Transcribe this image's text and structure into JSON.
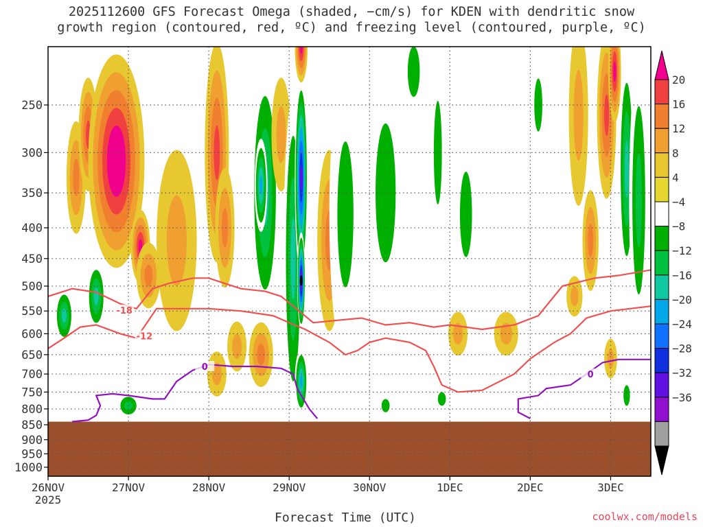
{
  "title_line1": "2025112600 GFS Forecast Omega (shaded, −cm/s) for KDEN with dendritic snow",
  "title_line2": "growth region (contoured, red, ºC) and freezing level (contoured, purple, ºC)",
  "credit": "coolwx.com/models",
  "chart_data": {
    "type": "heatmap",
    "xlabel": "Forecast Time (UTC)",
    "x_ticks": [
      "26NOV",
      "27NOV",
      "28NOV",
      "29NOV",
      "30NOV",
      "1DEC",
      "2DEC",
      "3DEC"
    ],
    "x_sub_label": "2025",
    "x_range_days": [
      0,
      7.5
    ],
    "y_ticks": [
      250,
      300,
      350,
      400,
      450,
      500,
      550,
      600,
      650,
      700,
      750,
      800,
      850,
      900,
      950,
      1000
    ],
    "ylim_hPa": [
      200,
      1035
    ],
    "y_scale": "log",
    "grid": true,
    "surface_pressure_hPa": 840,
    "surface_color": "#9c4f2b",
    "colorbar": {
      "ticks": [
        20,
        16,
        12,
        8,
        4,
        -4,
        -8,
        -12,
        -16,
        -20,
        -24,
        -28,
        -32,
        -36
      ],
      "colors": [
        "#f0008c",
        "#f04040",
        "#f08030",
        "#f0a030",
        "#e8c830",
        "#e6d830",
        "#ffffff",
        "#00b000",
        "#00c040",
        "#10c8a0",
        "#00a8e8",
        "#1070ff",
        "#1030e0",
        "#6010e0",
        "#9010d0",
        "#a0a0a0",
        "#000000"
      ]
    },
    "shading_blobs": [
      {
        "t": 0.35,
        "p": 330,
        "dt": 0.12,
        "dp": 70,
        "v": 10
      },
      {
        "t": 0.5,
        "p": 280,
        "dt": 0.12,
        "dp": 60,
        "v": 16
      },
      {
        "t": 0.85,
        "p": 310,
        "dt": 0.35,
        "dp": 120,
        "v": 22
      },
      {
        "t": 1.15,
        "p": 430,
        "dt": 0.12,
        "dp": 60,
        "v": 18
      },
      {
        "t": 1.25,
        "p": 480,
        "dt": 0.15,
        "dp": 60,
        "v": 10
      },
      {
        "t": 0.6,
        "p": 520,
        "dt": 0.12,
        "dp": 70,
        "v": -14
      },
      {
        "t": 0.2,
        "p": 560,
        "dt": 0.12,
        "dp": 60,
        "v": -14
      },
      {
        "t": 1.0,
        "p": 790,
        "dt": 0.15,
        "dp": 40,
        "v": -12
      },
      {
        "t": 1.6,
        "p": 420,
        "dt": 0.25,
        "dp": 140,
        "v": 6
      },
      {
        "t": 2.1,
        "p": 300,
        "dt": 0.15,
        "dp": 140,
        "v": 16
      },
      {
        "t": 2.2,
        "p": 400,
        "dt": 0.12,
        "dp": 90,
        "v": 12
      },
      {
        "t": 2.7,
        "p": 350,
        "dt": 0.18,
        "dp": 160,
        "v": -14
      },
      {
        "t": 2.65,
        "p": 340,
        "dt": 0.08,
        "dp": 60,
        "v": -20
      },
      {
        "t": 2.9,
        "p": 280,
        "dt": 0.12,
        "dp": 60,
        "v": 8
      },
      {
        "t": 2.65,
        "p": 650,
        "dt": 0.15,
        "dp": 80,
        "v": 12
      },
      {
        "t": 2.35,
        "p": 630,
        "dt": 0.12,
        "dp": 60,
        "v": 6
      },
      {
        "t": 3.05,
        "p": 450,
        "dt": 0.12,
        "dp": 250,
        "v": -14
      },
      {
        "t": 3.15,
        "p": 330,
        "dt": 0.08,
        "dp": 120,
        "v": -30
      },
      {
        "t": 3.15,
        "p": 490,
        "dt": 0.05,
        "dp": 90,
        "v": -36
      },
      {
        "t": 3.15,
        "p": 720,
        "dt": 0.08,
        "dp": 90,
        "v": -18
      },
      {
        "t": 3.15,
        "p": 200,
        "dt": 0.08,
        "dp": 50,
        "v": 20
      },
      {
        "t": 3.5,
        "p": 420,
        "dt": 0.15,
        "dp": 140,
        "v": 10
      },
      {
        "t": 3.7,
        "p": 380,
        "dt": 0.2,
        "dp": 200,
        "v": -8
      },
      {
        "t": 4.2,
        "p": 350,
        "dt": 0.25,
        "dp": 200,
        "v": -6
      },
      {
        "t": 4.55,
        "p": 220,
        "dt": 0.15,
        "dp": 60,
        "v": -8
      },
      {
        "t": 4.85,
        "p": 300,
        "dt": 0.1,
        "dp": 120,
        "v": -6
      },
      {
        "t": 5.2,
        "p": 380,
        "dt": 0.15,
        "dp": 120,
        "v": -8
      },
      {
        "t": 6.1,
        "p": 250,
        "dt": 0.1,
        "dp": 50,
        "v": -6
      },
      {
        "t": 6.6,
        "p": 260,
        "dt": 0.12,
        "dp": 120,
        "v": 6
      },
      {
        "t": 6.95,
        "p": 260,
        "dt": 0.12,
        "dp": 100,
        "v": 14
      },
      {
        "t": 7.05,
        "p": 220,
        "dt": 0.08,
        "dp": 60,
        "v": 20
      },
      {
        "t": 7.2,
        "p": 320,
        "dt": 0.1,
        "dp": 140,
        "v": -14
      },
      {
        "t": 7.35,
        "p": 360,
        "dt": 0.12,
        "dp": 200,
        "v": -10
      },
      {
        "t": 6.75,
        "p": 420,
        "dt": 0.1,
        "dp": 80,
        "v": 12
      },
      {
        "t": 6.55,
        "p": 520,
        "dt": 0.1,
        "dp": 40,
        "v": 6
      },
      {
        "t": 7.0,
        "p": 660,
        "dt": 0.08,
        "dp": 50,
        "v": 8
      },
      {
        "t": 5.7,
        "p": 600,
        "dt": 0.15,
        "dp": 50,
        "v": 6
      },
      {
        "t": 2.1,
        "p": 700,
        "dt": 0.12,
        "dp": 60,
        "v": 6
      },
      {
        "t": 4.2,
        "p": 790,
        "dt": 0.1,
        "dp": 40,
        "v": -8
      },
      {
        "t": 4.9,
        "p": 770,
        "dt": 0.1,
        "dp": 40,
        "v": -8
      },
      {
        "t": 5.1,
        "p": 600,
        "dt": 0.12,
        "dp": 50,
        "v": 6
      },
      {
        "t": 7.2,
        "p": 760,
        "dt": 0.08,
        "dp": 60,
        "v": -8
      }
    ],
    "contours": [
      {
        "name": "-18",
        "color": "#f05050",
        "label": "-18",
        "label_t": 0.95,
        "label_p": 548,
        "points": [
          [
            0,
            520
          ],
          [
            0.3,
            505
          ],
          [
            0.6,
            512
          ],
          [
            0.9,
            535
          ],
          [
            1.1,
            545
          ],
          [
            1.3,
            505
          ],
          [
            1.5,
            495
          ],
          [
            1.8,
            485
          ],
          [
            2.0,
            485
          ],
          [
            2.2,
            495
          ],
          [
            2.4,
            505
          ],
          [
            2.7,
            510
          ],
          [
            2.9,
            520
          ],
          [
            3.05,
            540
          ],
          [
            3.3,
            575
          ],
          [
            3.6,
            570
          ],
          [
            3.9,
            565
          ],
          [
            4.2,
            580
          ],
          [
            4.5,
            575
          ],
          [
            4.8,
            585
          ],
          [
            5.0,
            580
          ],
          [
            5.4,
            590
          ],
          [
            5.8,
            580
          ],
          [
            6.1,
            560
          ],
          [
            6.4,
            500
          ],
          [
            6.8,
            485
          ],
          [
            7.1,
            480
          ],
          [
            7.5,
            470
          ]
        ]
      },
      {
        "name": "-12",
        "color": "#f05050",
        "label": "-12",
        "label_t": 1.2,
        "label_p": 605,
        "points": [
          [
            0,
            635
          ],
          [
            0.2,
            610
          ],
          [
            0.4,
            585
          ],
          [
            0.6,
            580
          ],
          [
            0.9,
            600
          ],
          [
            1.1,
            610
          ],
          [
            1.35,
            545
          ],
          [
            1.6,
            545
          ],
          [
            2.0,
            545
          ],
          [
            2.4,
            550
          ],
          [
            2.8,
            560
          ],
          [
            3.0,
            575
          ],
          [
            3.2,
            590
          ],
          [
            3.5,
            620
          ],
          [
            3.7,
            650
          ],
          [
            3.85,
            640
          ],
          [
            4.0,
            620
          ],
          [
            4.2,
            610
          ],
          [
            4.5,
            620
          ],
          [
            4.7,
            640
          ],
          [
            4.8,
            680
          ],
          [
            4.9,
            730
          ],
          [
            5.1,
            750
          ],
          [
            5.4,
            745
          ],
          [
            5.8,
            700
          ],
          [
            6.0,
            660
          ],
          [
            6.3,
            620
          ],
          [
            6.5,
            600
          ],
          [
            6.7,
            565
          ],
          [
            7.0,
            550
          ],
          [
            7.5,
            540
          ]
        ]
      },
      {
        "name": "0",
        "color": "#9010c0",
        "label": "0",
        "label_t": 1.95,
        "label_p": 680,
        "points": [
          [
            0.3,
            840
          ],
          [
            0.5,
            835
          ],
          [
            0.6,
            820
          ],
          [
            0.65,
            790
          ],
          [
            0.6,
            760
          ],
          [
            0.8,
            755
          ],
          [
            1.0,
            760
          ],
          [
            1.3,
            770
          ],
          [
            1.45,
            770
          ],
          [
            1.6,
            720
          ],
          [
            1.8,
            690
          ],
          [
            2.0,
            675
          ],
          [
            2.3,
            680
          ],
          [
            2.6,
            680
          ],
          [
            2.9,
            685
          ],
          [
            3.05,
            700
          ],
          [
            3.1,
            740
          ],
          [
            3.25,
            800
          ],
          [
            3.35,
            830
          ]
        ]
      },
      {
        "name": "0b",
        "color": "#9010c0",
        "label": "0",
        "label_t": 6.75,
        "label_p": 700,
        "points": [
          [
            6.0,
            830
          ],
          [
            5.85,
            810
          ],
          [
            5.85,
            770
          ],
          [
            6.1,
            760
          ],
          [
            6.2,
            740
          ],
          [
            6.5,
            730
          ],
          [
            6.7,
            700
          ],
          [
            6.9,
            670
          ],
          [
            7.1,
            662
          ],
          [
            7.5,
            662
          ]
        ]
      }
    ]
  }
}
